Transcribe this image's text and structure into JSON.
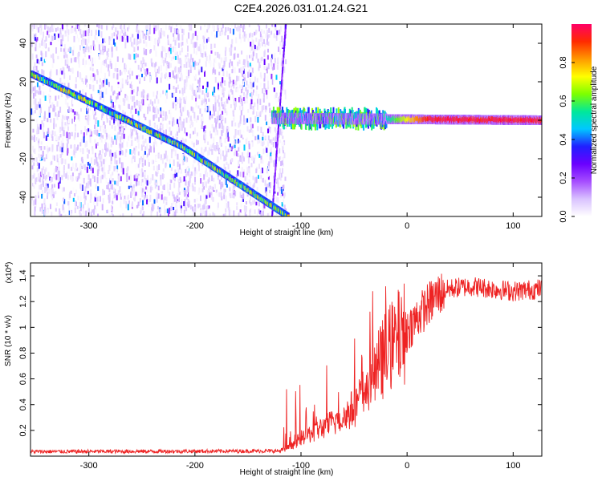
{
  "title": "C2E4.2026.031.01.24.G21",
  "chart_data": [
    {
      "type": "heatmap",
      "title": "C2E4.2026.031.01.24.G21",
      "xlabel": "Height of straight line (km)",
      "ylabel": "Frequency (Hz)",
      "xlim": [
        -355,
        127
      ],
      "ylim": [
        -50,
        50
      ],
      "xticks": [
        -300,
        -200,
        -100,
        0,
        100
      ],
      "yticks": [
        -40,
        -20,
        0,
        20,
        40
      ],
      "colorbar": {
        "label": "Normalized spectral amplitude",
        "range": [
          0,
          1
        ],
        "ticks": [
          0.0,
          0.2,
          0.4,
          0.6,
          0.8
        ],
        "tick_labels": [
          "0.0",
          "0.2",
          "0.4",
          "0.6",
          "0.8"
        ],
        "colors": [
          "#ffffff",
          "#d9c2ff",
          "#a64dff",
          "#6a00ff",
          "#2020ff",
          "#00c8ff",
          "#00e89a",
          "#7cff00",
          "#ffff00",
          "#ff9900",
          "#ff2b00",
          "#ff0066"
        ]
      },
      "features": [
        {
          "name": "noise-cloud",
          "x_range": [
            -355,
            -115
          ],
          "y_range": [
            -50,
            50
          ],
          "amplitude": 0.12
        },
        {
          "name": "descending-line-1",
          "x": [
            -355,
            -212
          ],
          "y": [
            24,
            -14
          ],
          "peak_amplitude": 0.5
        },
        {
          "name": "descending-line-2",
          "x": [
            -212,
            -113
          ],
          "y": [
            -14,
            -50
          ],
          "peak_amplitude": 0.45
        },
        {
          "name": "edge-streak",
          "x": [
            -115,
            -128
          ],
          "y": [
            50,
            -50
          ],
          "amplitude": 0.3
        },
        {
          "name": "carrier-line",
          "x": [
            -128,
            127
          ],
          "y": [
            1,
            0
          ],
          "peak_amplitude": 1.0
        }
      ]
    },
    {
      "type": "line",
      "xlabel": "Height of straight line (km)",
      "ylabel": "SNR (10 * v/v)",
      "y_scale_note": "(x10",
      "y_scale_exp": "4",
      "y_multiplier": 10000,
      "xlim": [
        -355,
        127
      ],
      "ylim": [
        0,
        1.5
      ],
      "xticks": [
        -300,
        -200,
        -100,
        0,
        100
      ],
      "yticks": [
        0.2,
        0.4,
        0.6,
        0.8,
        1.0,
        1.2,
        1.4
      ],
      "ytick_labels": [
        "0.2",
        "0.4",
        "0.6",
        "0.8",
        "1",
        "1.2",
        "1.4"
      ],
      "color": "#ee2222",
      "trend": {
        "x": [
          -355,
          -120,
          -110,
          -100,
          -80,
          -60,
          -50,
          -40,
          -30,
          -20,
          -10,
          0,
          10,
          20,
          30,
          40,
          60,
          80,
          100,
          127
        ],
        "y": [
          0.035,
          0.04,
          0.07,
          0.14,
          0.22,
          0.3,
          0.38,
          0.5,
          0.65,
          0.8,
          0.9,
          0.98,
          1.08,
          1.18,
          1.26,
          1.3,
          1.32,
          1.3,
          1.28,
          1.3
        ]
      }
    }
  ]
}
